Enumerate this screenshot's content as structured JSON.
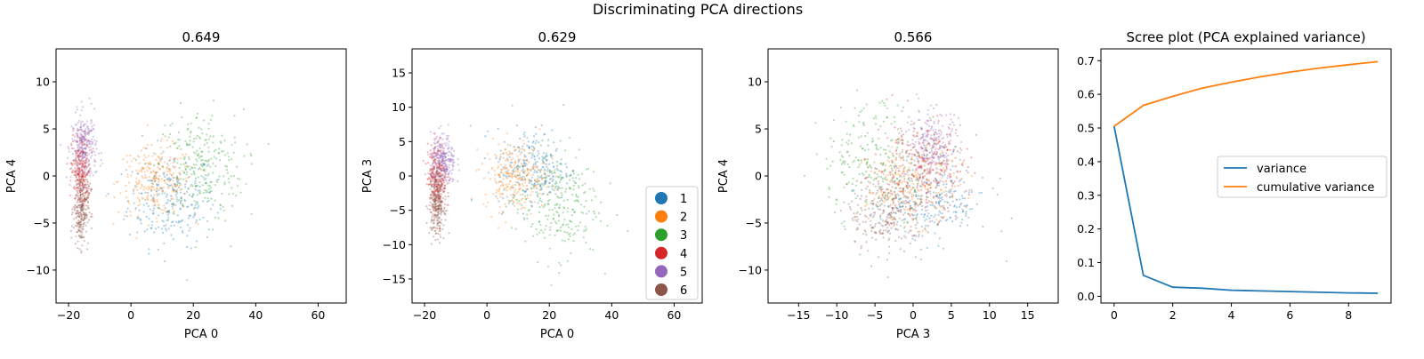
{
  "figure": {
    "suptitle": "Discriminating PCA directions"
  },
  "palette": {
    "1": "#1f77b4",
    "2": "#ff7f0e",
    "3": "#2ca02c",
    "4": "#d62728",
    "5": "#9467bd",
    "6": "#8c564b"
  },
  "chart_data": [
    {
      "type": "scatter",
      "title": "0.649",
      "xlabel": "PCA 0",
      "ylabel": "PCA 4",
      "xlim": [
        -24,
        69
      ],
      "ylim": [
        -13.5,
        13.5
      ],
      "xticks": [
        -20,
        0,
        20,
        40,
        60
      ],
      "yticks": [
        -10,
        -5,
        0,
        5,
        10
      ],
      "grid": false,
      "series": [
        {
          "name": "1",
          "center": [
            13,
            -2.5
          ],
          "spread": [
            7,
            2.5
          ]
        },
        {
          "name": "2",
          "center": [
            8,
            -0.5
          ],
          "spread": [
            6,
            1.8
          ]
        },
        {
          "name": "3",
          "center": [
            22,
            1
          ],
          "spread": [
            7,
            3
          ]
        },
        {
          "name": "4",
          "center": [
            -16,
            0.5
          ],
          "spread": [
            1.5,
            2
          ]
        },
        {
          "name": "5",
          "center": [
            -15,
            3
          ],
          "spread": [
            2,
            1.8
          ]
        },
        {
          "name": "6",
          "center": [
            -16,
            -3.5
          ],
          "spread": [
            1.2,
            2
          ]
        }
      ]
    },
    {
      "type": "scatter",
      "title": "0.629",
      "xlabel": "PCA 0",
      "ylabel": "PCA 3",
      "xlim": [
        -24,
        69
      ],
      "ylim": [
        -18.5,
        18.5
      ],
      "xticks": [
        -20,
        0,
        20,
        40,
        60
      ],
      "yticks": [
        -15,
        -10,
        -5,
        0,
        5,
        10,
        15
      ],
      "grid": false,
      "legend": {
        "position": "lower right",
        "entries": [
          "1",
          "2",
          "3",
          "4",
          "5",
          "6"
        ]
      },
      "series": [
        {
          "name": "1",
          "center": [
            15,
            1
          ],
          "spread": [
            6,
            3
          ]
        },
        {
          "name": "2",
          "center": [
            9,
            0
          ],
          "spread": [
            5,
            2.5
          ]
        },
        {
          "name": "3",
          "center": [
            22,
            -4
          ],
          "spread": [
            7,
            4
          ]
        },
        {
          "name": "4",
          "center": [
            -16,
            0
          ],
          "spread": [
            1.5,
            2.5
          ]
        },
        {
          "name": "5",
          "center": [
            -14,
            2
          ],
          "spread": [
            2,
            2
          ]
        },
        {
          "name": "6",
          "center": [
            -16,
            -4
          ],
          "spread": [
            1.2,
            2.5
          ]
        }
      ]
    },
    {
      "type": "scatter",
      "title": "0.566",
      "xlabel": "PCA 3",
      "ylabel": "PCA 4",
      "xlim": [
        -19,
        19
      ],
      "ylim": [
        -13.5,
        13.5
      ],
      "xticks": [
        -15,
        -10,
        -5,
        0,
        5,
        10,
        15
      ],
      "yticks": [
        -10,
        -5,
        0,
        5,
        10
      ],
      "grid": false,
      "series": [
        {
          "name": "1",
          "center": [
            2,
            -3
          ],
          "spread": [
            4,
            2
          ]
        },
        {
          "name": "2",
          "center": [
            0,
            -1
          ],
          "spread": [
            3,
            2
          ]
        },
        {
          "name": "3",
          "center": [
            -4,
            2
          ],
          "spread": [
            4,
            3
          ]
        },
        {
          "name": "4",
          "center": [
            1,
            1
          ],
          "spread": [
            3,
            2.5
          ]
        },
        {
          "name": "5",
          "center": [
            2.5,
            3
          ],
          "spread": [
            1.8,
            2
          ]
        },
        {
          "name": "6",
          "center": [
            -3.5,
            -4
          ],
          "spread": [
            2.5,
            2
          ]
        }
      ]
    },
    {
      "type": "line",
      "title": "Scree plot (PCA explained variance)",
      "xlabel": "",
      "ylabel": "",
      "xlim": [
        -0.45,
        9.45
      ],
      "ylim": [
        -0.02,
        0.735
      ],
      "xticks": [
        0,
        2,
        4,
        6,
        8
      ],
      "yticks": [
        0.0,
        0.1,
        0.2,
        0.3,
        0.4,
        0.5,
        0.6,
        0.7
      ],
      "grid": false,
      "legend": {
        "position": "center right",
        "entries": [
          "variance",
          "cumulative variance"
        ]
      },
      "x": [
        0,
        1,
        2,
        3,
        4,
        5,
        6,
        7,
        8,
        9
      ],
      "series": [
        {
          "name": "variance",
          "color": "#1f77b4",
          "values": [
            0.505,
            0.062,
            0.027,
            0.024,
            0.018,
            0.016,
            0.014,
            0.012,
            0.01,
            0.009
          ]
        },
        {
          "name": "cumulative variance",
          "color": "#ff7f0e",
          "values": [
            0.505,
            0.567,
            0.594,
            0.618,
            0.636,
            0.652,
            0.666,
            0.678,
            0.688,
            0.697
          ]
        }
      ]
    }
  ]
}
